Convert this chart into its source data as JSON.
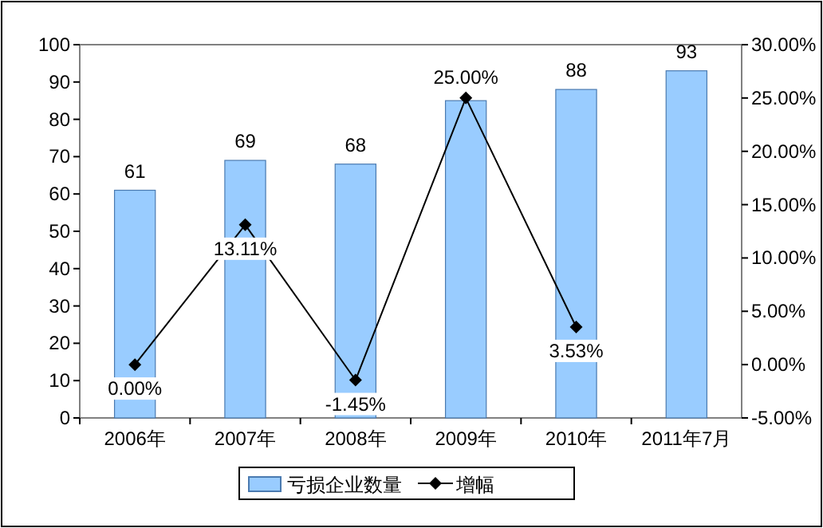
{
  "chart_data": {
    "type": "bar",
    "categories": [
      "2006年",
      "2007年",
      "2008年",
      "2009年",
      "2010年",
      "2011年7月"
    ],
    "series": [
      {
        "name": "亏损企业数量",
        "color": "#99ccff",
        "values": [
          61,
          69,
          68,
          85,
          88,
          93
        ],
        "data_labels": true
      },
      {
        "name": "增幅",
        "type": "line",
        "axis": "y2",
        "color": "#000000",
        "marker": "diamond",
        "values": [
          0.0,
          13.11,
          -1.45,
          25.0,
          3.53,
          null
        ],
        "value_labels": [
          "0.00%",
          "13.11%",
          "-1.45%",
          "25.00%",
          "3.53%",
          null
        ]
      }
    ],
    "ylim": [
      0,
      100
    ],
    "yticks": [
      0,
      10,
      20,
      30,
      40,
      50,
      60,
      70,
      80,
      90,
      100
    ],
    "y2lim": [
      -5,
      30
    ],
    "y2ticks": [
      {
        "value": -5,
        "label": "-5.00%"
      },
      {
        "value": 0,
        "label": "0.00%"
      },
      {
        "value": 5,
        "label": "5.00%"
      },
      {
        "value": 10,
        "label": "10.00%"
      },
      {
        "value": 15,
        "label": "15.00%"
      },
      {
        "value": 20,
        "label": "20.00%"
      },
      {
        "value": 25,
        "label": "25.00%"
      },
      {
        "value": 30,
        "label": "30.00%"
      }
    ],
    "legend": "bottom",
    "grid": false
  }
}
